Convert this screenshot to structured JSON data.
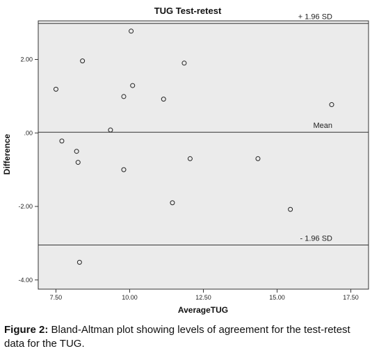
{
  "chart_data": {
    "type": "scatter",
    "title": "TUG Test-retest",
    "xlabel": "AverageTUG",
    "ylabel": "Difference",
    "xlim": [
      6.9,
      18.1
    ],
    "ylim": [
      -4.25,
      3.05
    ],
    "x_ticks": [
      7.5,
      10.0,
      12.5,
      15.0,
      17.5
    ],
    "x_tick_labels": [
      "7.50",
      "10.00",
      "12.50",
      "15.00",
      "17.50"
    ],
    "y_ticks": [
      2,
      0,
      -2,
      -4
    ],
    "y_tick_labels": [
      "2.00",
      ".00",
      "-2.00",
      "-4.00"
    ],
    "grid": false,
    "background": "#ebebeb",
    "reference_lines": [
      {
        "label": "+ 1.96 SD",
        "y": 2.98
      },
      {
        "label": "Mean",
        "y": 0.02
      },
      {
        "label": "- 1.96 SD",
        "y": -3.05
      }
    ],
    "points": [
      {
        "x": 10.05,
        "y": 2.77
      },
      {
        "x": 8.4,
        "y": 1.96
      },
      {
        "x": 11.85,
        "y": 1.9
      },
      {
        "x": 7.5,
        "y": 1.19
      },
      {
        "x": 10.1,
        "y": 1.29
      },
      {
        "x": 9.8,
        "y": 0.99
      },
      {
        "x": 11.15,
        "y": 0.92
      },
      {
        "x": 16.85,
        "y": 0.77
      },
      {
        "x": 9.35,
        "y": 0.08
      },
      {
        "x": 7.7,
        "y": -0.22
      },
      {
        "x": 8.2,
        "y": -0.5
      },
      {
        "x": 8.25,
        "y": -0.8
      },
      {
        "x": 12.05,
        "y": -0.7
      },
      {
        "x": 14.35,
        "y": -0.7
      },
      {
        "x": 9.8,
        "y": -1.0
      },
      {
        "x": 11.45,
        "y": -1.9
      },
      {
        "x": 15.45,
        "y": -2.08
      },
      {
        "x": 8.3,
        "y": -3.52
      }
    ]
  },
  "caption": {
    "label": "Figure 2:",
    "text": " Bland-Altman plot showing levels of agreement for the test-retest data for the TUG."
  }
}
